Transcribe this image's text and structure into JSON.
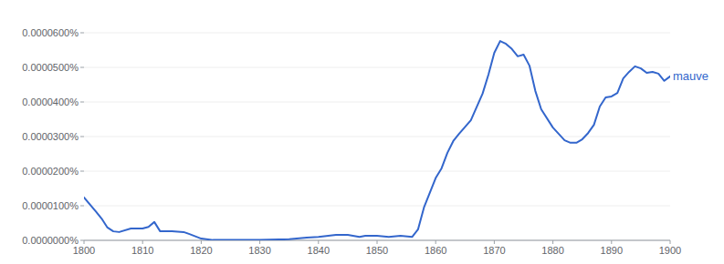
{
  "chart_data": {
    "type": "line",
    "x": [
      1800,
      1802,
      1803,
      1804,
      1805,
      1806,
      1808,
      1810,
      1811,
      1812,
      1813,
      1815,
      1817,
      1818,
      1820,
      1822,
      1825,
      1830,
      1835,
      1838,
      1840,
      1843,
      1845,
      1847,
      1848,
      1850,
      1852,
      1854,
      1856,
      1857,
      1858,
      1860,
      1861,
      1862,
      1863,
      1864,
      1866,
      1868,
      1869,
      1870,
      1871,
      1872,
      1873,
      1874,
      1875,
      1876,
      1877,
      1878,
      1880,
      1882,
      1883,
      1884,
      1885,
      1886,
      1887,
      1888,
      1889,
      1890,
      1891,
      1892,
      1893,
      1894,
      1895,
      1896,
      1897,
      1898,
      1899,
      1900
    ],
    "series": [
      {
        "name": "mauve",
        "color": "#3366cc",
        "values": [
          1.24e-05,
          8.4e-06,
          6.3e-06,
          3.7e-06,
          2.6e-06,
          2.4e-06,
          3.4e-06,
          3.4e-06,
          3.9e-06,
          5.3e-06,
          2.6e-06,
          2.6e-06,
          2.4e-06,
          1.8e-06,
          5e-07,
          1e-07,
          1e-07,
          1e-07,
          3e-07,
          8e-07,
          1e-06,
          1.6e-06,
          1.6e-06,
          1e-06,
          1.3e-06,
          1.3e-06,
          1e-06,
          1.3e-06,
          1e-06,
          3.2e-06,
          9.5e-06,
          1.8e-05,
          2.08e-05,
          2.53e-05,
          2.87e-05,
          3.08e-05,
          3.47e-05,
          4.24e-05,
          4.79e-05,
          5.42e-05,
          5.76e-05,
          5.68e-05,
          5.53e-05,
          5.32e-05,
          5.37e-05,
          5.05e-05,
          4.32e-05,
          3.79e-05,
          3.26e-05,
          2.89e-05,
          2.82e-05,
          2.82e-05,
          2.92e-05,
          3.1e-05,
          3.34e-05,
          3.87e-05,
          4.13e-05,
          4.16e-05,
          4.26e-05,
          4.68e-05,
          4.87e-05,
          5.03e-05,
          4.97e-05,
          4.84e-05,
          4.87e-05,
          4.82e-05,
          4.61e-05,
          4.74e-05
        ]
      }
    ],
    "xlim": [
      1800,
      1900
    ],
    "xticks": [
      1800,
      1810,
      1820,
      1830,
      1840,
      1850,
      1860,
      1870,
      1880,
      1890,
      1900
    ],
    "ylim": [
      0,
      6e-05
    ],
    "yticks": [
      {
        "value": 0,
        "label": "0.0000000%"
      },
      {
        "value": 1e-05,
        "label": "0.0000100%"
      },
      {
        "value": 2e-05,
        "label": "0.0000200%"
      },
      {
        "value": 3e-05,
        "label": "0.0000300%"
      },
      {
        "value": 4e-05,
        "label": "0.0000400%"
      },
      {
        "value": 5e-05,
        "label": "0.0000500%"
      },
      {
        "value": 6e-05,
        "label": "0.0000600%"
      }
    ],
    "grid": true
  }
}
